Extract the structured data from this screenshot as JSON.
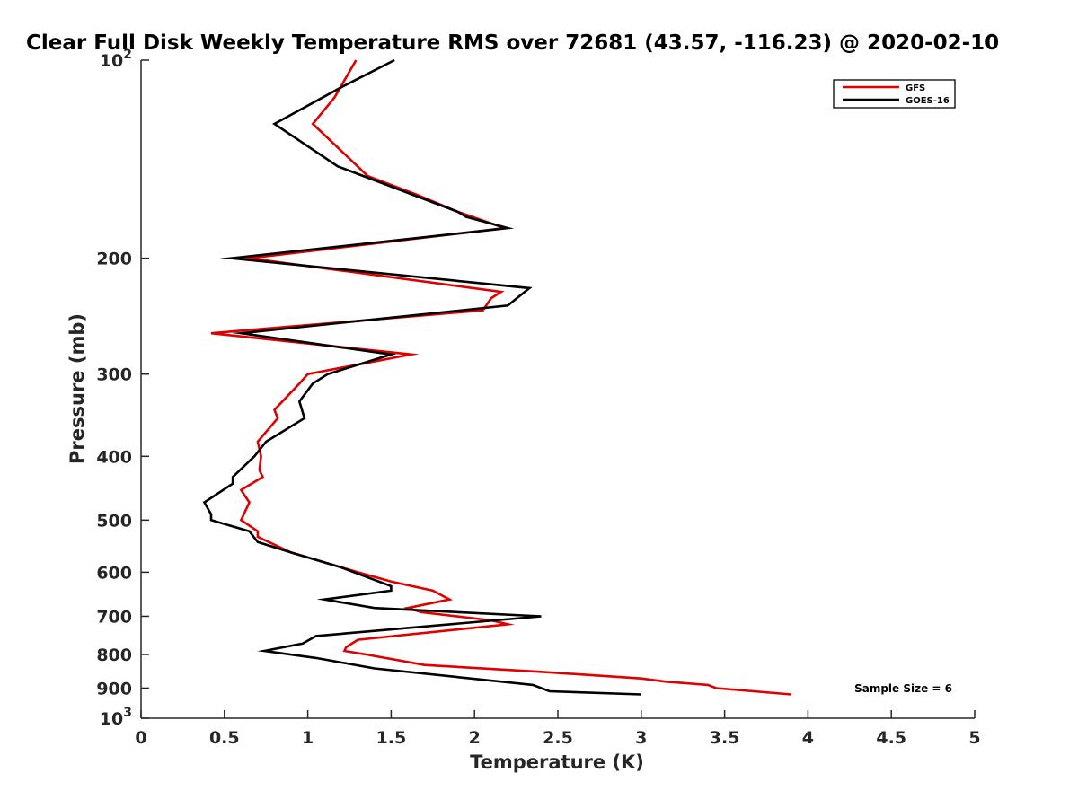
{
  "chart_data": {
    "type": "line",
    "title": "Clear Full Disk Weekly Temperature RMS over 72681 (43.57, -116.23) @ 2020-02-10",
    "xlabel": "Temperature (K)",
    "ylabel": "Pressure (mb)",
    "xlim": [
      0,
      5
    ],
    "ylim": [
      100,
      1000
    ],
    "y_scale": "log",
    "y_reversed": true,
    "x_ticks": [
      "0",
      "0.5",
      "1",
      "1.5",
      "2",
      "2.5",
      "3",
      "3.5",
      "4",
      "4.5",
      "5"
    ],
    "y_ticks": [
      {
        "value": 100,
        "label": "10",
        "sup": "2"
      },
      {
        "value": 200,
        "label": "200",
        "sup": ""
      },
      {
        "value": 300,
        "label": "300",
        "sup": ""
      },
      {
        "value": 400,
        "label": "400",
        "sup": ""
      },
      {
        "value": 500,
        "label": "500",
        "sup": ""
      },
      {
        "value": 600,
        "label": "600",
        "sup": ""
      },
      {
        "value": 700,
        "label": "700",
        "sup": ""
      },
      {
        "value": 800,
        "label": "800",
        "sup": ""
      },
      {
        "value": 900,
        "label": "900",
        "sup": ""
      },
      {
        "value": 1000,
        "label": "10",
        "sup": "3"
      }
    ],
    "grid": false,
    "legend_position": "top-right",
    "annotation": "Sample Size = 6",
    "series": [
      {
        "name": "GFS",
        "color": "#e00000",
        "points": [
          [
            1.29,
            100
          ],
          [
            1.16,
            114
          ],
          [
            1.03,
            125
          ],
          [
            1.36,
            150
          ],
          [
            1.65,
            160
          ],
          [
            1.9,
            170
          ],
          [
            2.18,
            180
          ],
          [
            0.65,
            200
          ],
          [
            2.16,
            225
          ],
          [
            2.1,
            230
          ],
          [
            2.05,
            240
          ],
          [
            0.42,
            260
          ],
          [
            1.62,
            280
          ],
          [
            1.0,
            300
          ],
          [
            0.95,
            310
          ],
          [
            0.8,
            340
          ],
          [
            0.82,
            350
          ],
          [
            0.7,
            380
          ],
          [
            0.72,
            400
          ],
          [
            0.71,
            420
          ],
          [
            0.73,
            430
          ],
          [
            0.6,
            450
          ],
          [
            0.65,
            470
          ],
          [
            0.6,
            500
          ],
          [
            0.7,
            520
          ],
          [
            0.7,
            530
          ],
          [
            0.9,
            560
          ],
          [
            1.3,
            600
          ],
          [
            1.5,
            620
          ],
          [
            1.75,
            640
          ],
          [
            1.85,
            660
          ],
          [
            1.6,
            680
          ],
          [
            1.68,
            690
          ],
          [
            2.1,
            710
          ],
          [
            2.2,
            720
          ],
          [
            1.3,
            760
          ],
          [
            1.23,
            780
          ],
          [
            1.22,
            790
          ],
          [
            1.35,
            800
          ],
          [
            1.7,
            830
          ],
          [
            2.4,
            850
          ],
          [
            3.0,
            870
          ],
          [
            3.15,
            880
          ],
          [
            3.4,
            890
          ],
          [
            3.45,
            900
          ],
          [
            3.9,
            920
          ]
        ]
      },
      {
        "name": "GOES-16",
        "color": "#000000",
        "points": [
          [
            1.52,
            100
          ],
          [
            1.2,
            110
          ],
          [
            0.8,
            125
          ],
          [
            1.18,
            145
          ],
          [
            1.9,
            170
          ],
          [
            1.95,
            173
          ],
          [
            2.2,
            180
          ],
          [
            0.54,
            200
          ],
          [
            2.33,
            222
          ],
          [
            2.2,
            236
          ],
          [
            0.6,
            260
          ],
          [
            1.5,
            280
          ],
          [
            1.12,
            300
          ],
          [
            1.03,
            310
          ],
          [
            0.95,
            330
          ],
          [
            0.98,
            350
          ],
          [
            0.75,
            380
          ],
          [
            0.68,
            400
          ],
          [
            0.55,
            430
          ],
          [
            0.55,
            440
          ],
          [
            0.38,
            470
          ],
          [
            0.42,
            490
          ],
          [
            0.42,
            500
          ],
          [
            0.65,
            520
          ],
          [
            0.7,
            540
          ],
          [
            0.9,
            560
          ],
          [
            1.2,
            590
          ],
          [
            1.5,
            630
          ],
          [
            1.5,
            640
          ],
          [
            1.1,
            660
          ],
          [
            1.4,
            680
          ],
          [
            2.4,
            700
          ],
          [
            1.05,
            750
          ],
          [
            0.97,
            770
          ],
          [
            0.74,
            790
          ],
          [
            1.05,
            810
          ],
          [
            1.4,
            840
          ],
          [
            2.35,
            890
          ],
          [
            2.45,
            910
          ],
          [
            3.0,
            920
          ]
        ]
      }
    ]
  }
}
